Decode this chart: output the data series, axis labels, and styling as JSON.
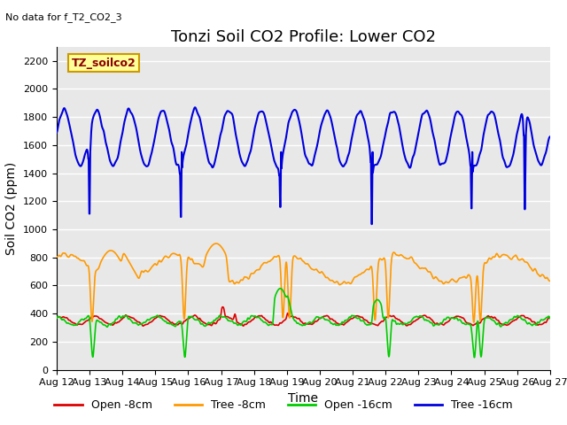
{
  "title": "Tonzi Soil CO2 Profile: Lower CO2",
  "subtitle": "No data for f_T2_CO2_3",
  "xlabel": "Time",
  "ylabel": "Soil CO2 (ppm)",
  "ylim": [
    0,
    2300
  ],
  "yticks": [
    0,
    200,
    400,
    600,
    800,
    1000,
    1200,
    1400,
    1600,
    1800,
    2000,
    2200
  ],
  "xtick_labels": [
    "Aug 12",
    "Aug 13",
    "Aug 14",
    "Aug 15",
    "Aug 16",
    "Aug 17",
    "Aug 18",
    "Aug 19",
    "Aug 20",
    "Aug 21",
    "Aug 22",
    "Aug 23",
    "Aug 24",
    "Aug 25",
    "Aug 26",
    "Aug 27"
  ],
  "legend_labels": [
    "Open -8cm",
    "Tree -8cm",
    "Open -16cm",
    "Tree -16cm"
  ],
  "legend_colors": [
    "#dd0000",
    "#ff9900",
    "#00cc00",
    "#0000dd"
  ],
  "tag_label": "TZ_soilco2",
  "tag_bg": "#ffff99",
  "tag_border": "#cc9900",
  "plot_bg": "#e8e8e8",
  "fig_bg": "#ffffff",
  "grid_color": "#ffffff",
  "title_fontsize": 13,
  "axis_fontsize": 10,
  "tick_fontsize": 8
}
